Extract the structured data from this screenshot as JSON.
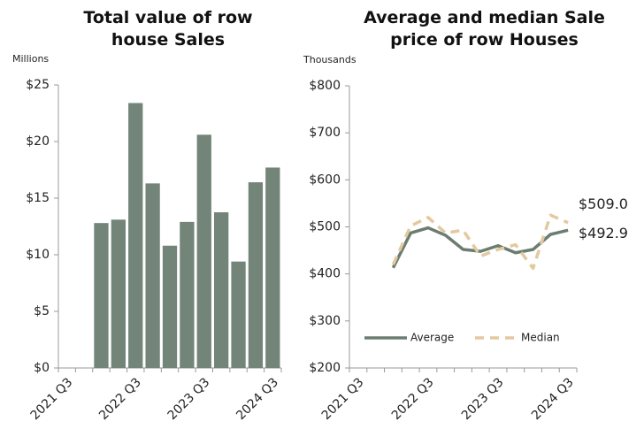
{
  "chart_data": [
    {
      "type": "bar",
      "title": "Total value of row house Sales",
      "y_label": "Millions",
      "categories": [
        "2021 Q3",
        null,
        null,
        null,
        "2022 Q3",
        null,
        null,
        null,
        "2023 Q3",
        null,
        null,
        null,
        "2024 Q3"
      ],
      "values": [
        null,
        null,
        12.8,
        13.1,
        23.4,
        16.3,
        10.8,
        12.9,
        20.6,
        13.75,
        9.4,
        16.4,
        17.7
      ],
      "color": "#738478",
      "ylim": [
        0,
        25
      ],
      "yticks": [
        {
          "value": 0,
          "label": "$0"
        },
        {
          "value": 5,
          "label": "$5"
        },
        {
          "value": 10,
          "label": "$10"
        },
        {
          "value": 15,
          "label": "$15"
        },
        {
          "value": 20,
          "label": "$20"
        },
        {
          "value": 25,
          "label": "$25"
        }
      ]
    },
    {
      "type": "line",
      "title": "Average and median Sale price of row Houses",
      "y_label": "Thousands",
      "categories": [
        "2021 Q3",
        null,
        null,
        null,
        "2022 Q3",
        null,
        null,
        null,
        "2023 Q3",
        null,
        null,
        null,
        "2024 Q3"
      ],
      "series": [
        {
          "name": "Average",
          "color": "#6b7d70",
          "dashed": false,
          "values": [
            null,
            null,
            413,
            487,
            498,
            482,
            452,
            448,
            460,
            445,
            452,
            484,
            492.9
          ],
          "value_labels": [
            null,
            null,
            null,
            null,
            null,
            null,
            null,
            null,
            null,
            null,
            null,
            null,
            "$492.9"
          ]
        },
        {
          "name": "Median",
          "color": "#e3c9a0",
          "dashed": true,
          "values": [
            null,
            null,
            420,
            502,
            520,
            487,
            493,
            438,
            452,
            462,
            412,
            525,
            509.0
          ],
          "value_labels": [
            null,
            null,
            null,
            null,
            null,
            null,
            null,
            null,
            null,
            null,
            null,
            null,
            "$509.0"
          ]
        }
      ],
      "ylim": [
        200,
        800
      ],
      "yticks": [
        {
          "value": 200,
          "label": "$200"
        },
        {
          "value": 300,
          "label": "$300"
        },
        {
          "value": 400,
          "label": "$400"
        },
        {
          "value": 500,
          "label": "$500"
        },
        {
          "value": 600,
          "label": "$600"
        },
        {
          "value": 700,
          "label": "$700"
        },
        {
          "value": 800,
          "label": "$800"
        }
      ],
      "legend": "lower left"
    }
  ]
}
